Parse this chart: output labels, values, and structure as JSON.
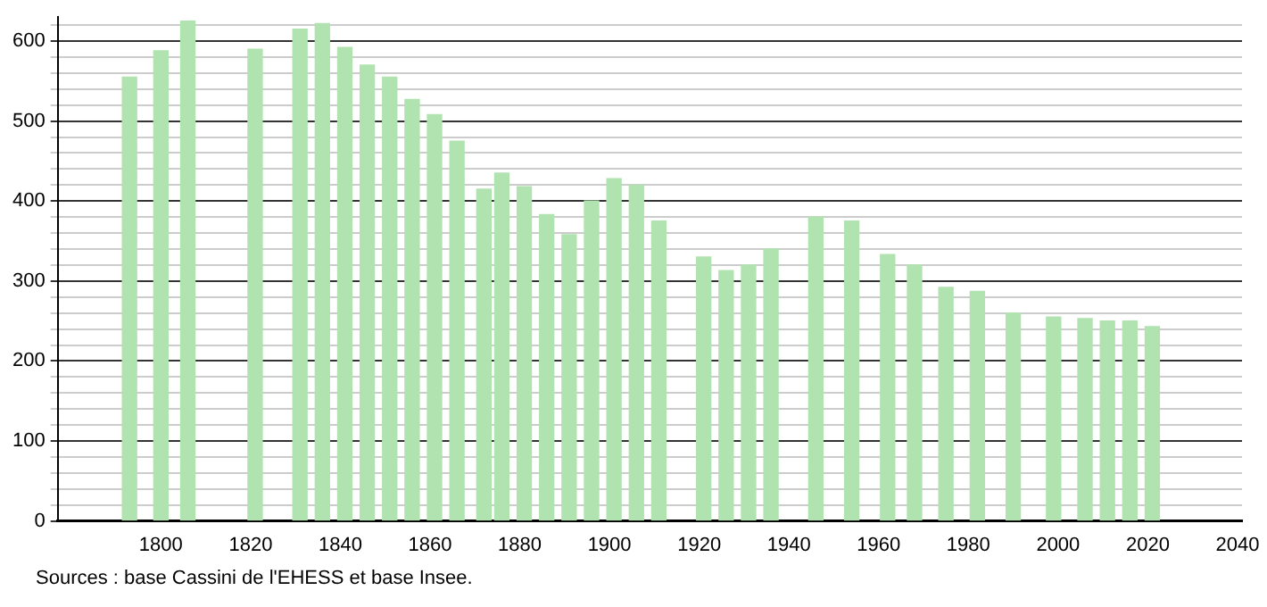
{
  "chart_data": {
    "type": "bar",
    "x": [
      1793,
      1800,
      1806,
      1821,
      1831,
      1836,
      1841,
      1846,
      1851,
      1856,
      1861,
      1866,
      1872,
      1876,
      1881,
      1886,
      1891,
      1896,
      1901,
      1906,
      1911,
      1921,
      1926,
      1931,
      1936,
      1946,
      1954,
      1962,
      1968,
      1975,
      1982,
      1990,
      1999,
      2006,
      2011,
      2016,
      2021
    ],
    "values": [
      555,
      588,
      625,
      590,
      615,
      622,
      592,
      570,
      555,
      527,
      508,
      475,
      415,
      435,
      418,
      383,
      358,
      400,
      428,
      420,
      375,
      330,
      313,
      320,
      340,
      380,
      375,
      333,
      320,
      292,
      287,
      260,
      255,
      253,
      250,
      250,
      243
    ],
    "color": "#b0e3b0",
    "xlim": [
      1777,
      2041
    ],
    "xticks": [
      1800,
      1820,
      1840,
      1860,
      1880,
      1900,
      1920,
      1940,
      1960,
      1980,
      2000,
      2020,
      2040
    ],
    "ylim": [
      0,
      630
    ],
    "yticks": [
      0,
      {
        "value": 20,
        "label": null
      },
      {
        "value": 40,
        "label": null
      },
      {
        "value": 60,
        "label": null
      },
      {
        "value": 80,
        "label": null
      },
      100,
      {
        "value": 120,
        "label": null
      },
      {
        "value": 140,
        "label": null
      },
      {
        "value": 160,
        "label": null
      },
      {
        "value": 180,
        "label": null
      },
      200,
      {
        "value": 220,
        "label": null
      },
      {
        "value": 240,
        "label": null
      },
      {
        "value": 260,
        "label": null
      },
      {
        "value": 280,
        "label": null
      },
      300,
      {
        "value": 320,
        "label": null
      },
      {
        "value": 340,
        "label": null
      },
      {
        "value": 360,
        "label": null
      },
      {
        "value": 380,
        "label": null
      },
      400,
      {
        "value": 420,
        "label": null
      },
      {
        "value": 440,
        "label": null
      },
      {
        "value": 460,
        "label": null
      },
      {
        "value": 480,
        "label": null
      },
      500,
      {
        "value": 520,
        "label": null
      },
      {
        "value": 540,
        "label": null
      },
      {
        "value": 560,
        "label": null
      },
      {
        "value": 580,
        "label": null
      },
      600,
      {
        "value": 620,
        "label": null
      }
    ],
    "grid": "y",
    "annotations": [
      "Sources : base Cassini de l'EHESS et base Insee."
    ]
  }
}
